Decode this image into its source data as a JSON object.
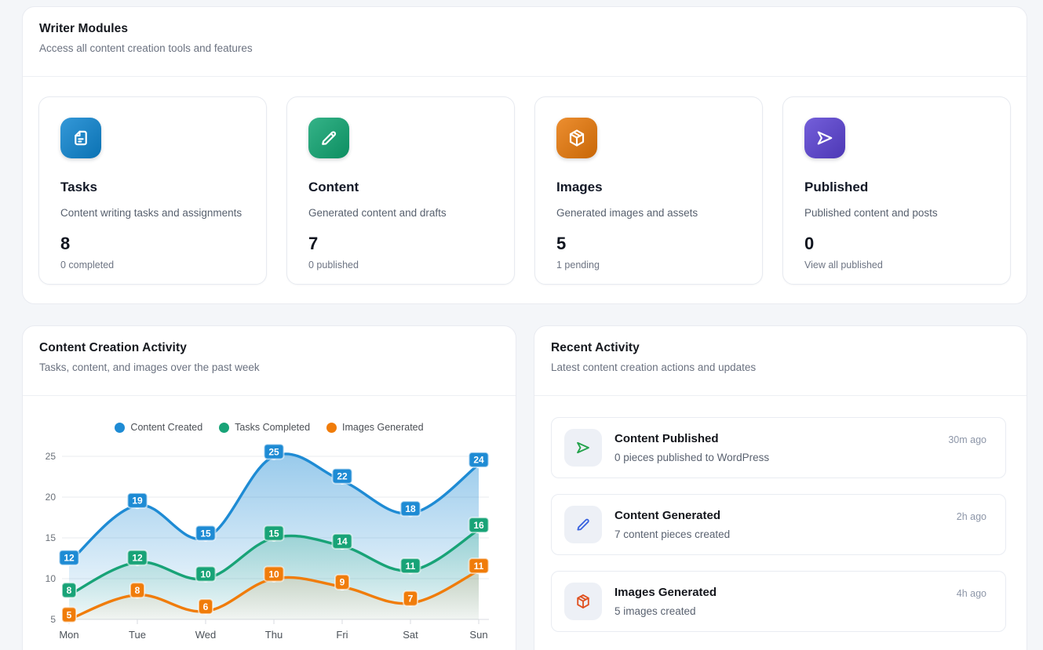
{
  "modules_panel": {
    "title": "Writer Modules",
    "subtitle": "Access all content creation tools and features",
    "cards": [
      {
        "icon": "document-icon",
        "icon_bg": "#0d84d0",
        "title": "Tasks",
        "description": "Content writing tasks and assignments",
        "value": "8",
        "footnote": "0 completed"
      },
      {
        "icon": "pencil-icon",
        "icon_bg": "#0fa571",
        "title": "Content",
        "description": "Generated content and drafts",
        "value": "7",
        "footnote": "0 published"
      },
      {
        "icon": "cube-icon",
        "icon_bg": "#e87808",
        "title": "Images",
        "description": "Generated images and assets",
        "value": "5",
        "footnote": "1 pending"
      },
      {
        "icon": "send-icon",
        "icon_bg": "#5a41d3",
        "title": "Published",
        "description": "Published content and posts",
        "value": "0",
        "footnote": "View all published"
      }
    ]
  },
  "chart_panel": {
    "title": "Content Creation Activity",
    "subtitle": "Tasks, content, and images over the past week"
  },
  "chart_data": {
    "type": "line",
    "x": [
      "Mon",
      "Tue",
      "Wed",
      "Thu",
      "Fri",
      "Sat",
      "Sun"
    ],
    "series": [
      {
        "name": "Content Created",
        "color": "#1e8bd4",
        "values": [
          12,
          19,
          15,
          25,
          22,
          18,
          24
        ]
      },
      {
        "name": "Tasks Completed",
        "color": "#18a377",
        "values": [
          8,
          12,
          10,
          15,
          14,
          11,
          16
        ]
      },
      {
        "name": "Images Generated",
        "color": "#f07c0a",
        "values": [
          5,
          8,
          6,
          10,
          9,
          7,
          11
        ]
      }
    ],
    "ylim": [
      5,
      25
    ],
    "yticks": [
      5,
      10,
      15,
      20,
      25
    ],
    "grid": true,
    "legend_position": "top",
    "area_fill": true,
    "point_labels": true
  },
  "activity_panel": {
    "title": "Recent Activity",
    "subtitle": "Latest content creation actions and updates",
    "items": [
      {
        "icon": "send-icon",
        "icon_color": "#23a24b",
        "title": "Content Published",
        "description": "0 pieces published to WordPress",
        "time": "30m ago"
      },
      {
        "icon": "pencil-icon",
        "icon_color": "#3a63df",
        "title": "Content Generated",
        "description": "7 content pieces created",
        "time": "2h ago"
      },
      {
        "icon": "cube-icon",
        "icon_color": "#e0501f",
        "title": "Images Generated",
        "description": "5 images created",
        "time": "4h ago"
      }
    ]
  }
}
